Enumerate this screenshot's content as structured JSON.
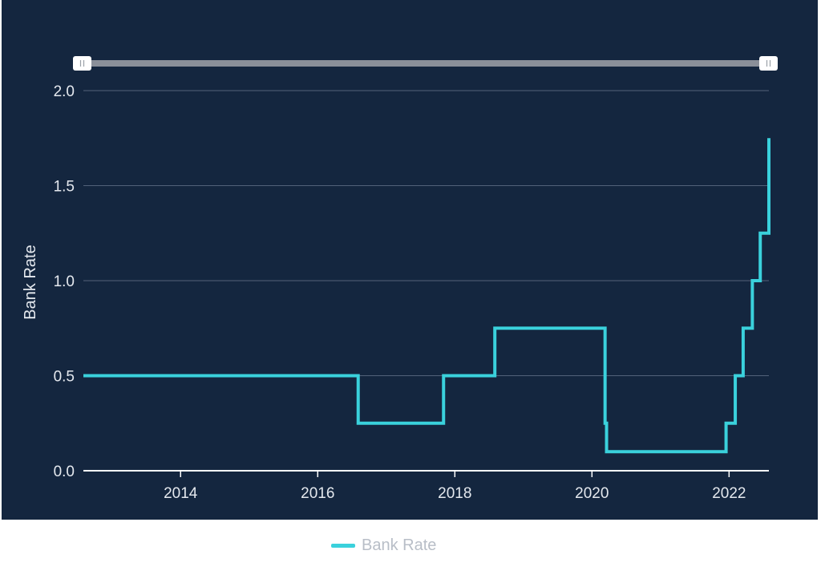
{
  "colors": {
    "panel_background": "#14263f",
    "line": "#3ad1dc",
    "gridline": "#53627a",
    "axis": "#ffffff",
    "slider_track": "#8a8f99",
    "slider_handle": "#ffffff"
  },
  "legend": {
    "label": "Bank Rate"
  },
  "chart_data": {
    "type": "line",
    "line_shape": "step",
    "title": "",
    "xlabel": "",
    "ylabel": "Bank Rate",
    "xlim": [
      "2012-08-01",
      "2022-08-01"
    ],
    "ylim": [
      0,
      2.0
    ],
    "x_ticks": [
      "2014",
      "2016",
      "2018",
      "2020",
      "2022"
    ],
    "y_ticks": [
      "0.0",
      "0.5",
      "1.0",
      "1.5",
      "2.0"
    ],
    "grid": {
      "horizontal": true,
      "vertical": false
    },
    "legend_position": "bottom",
    "range_slider": true,
    "series": [
      {
        "name": "Bank Rate",
        "x": [
          "2012-08-01",
          "2016-08-04",
          "2017-11-02",
          "2018-08-02",
          "2020-03-11",
          "2020-03-19",
          "2021-12-16",
          "2022-02-03",
          "2022-03-17",
          "2022-05-05",
          "2022-06-16",
          "2022-08-01"
        ],
        "values": [
          0.5,
          0.25,
          0.5,
          0.75,
          0.25,
          0.1,
          0.25,
          0.5,
          0.75,
          1.0,
          1.25,
          1.75
        ]
      }
    ]
  }
}
